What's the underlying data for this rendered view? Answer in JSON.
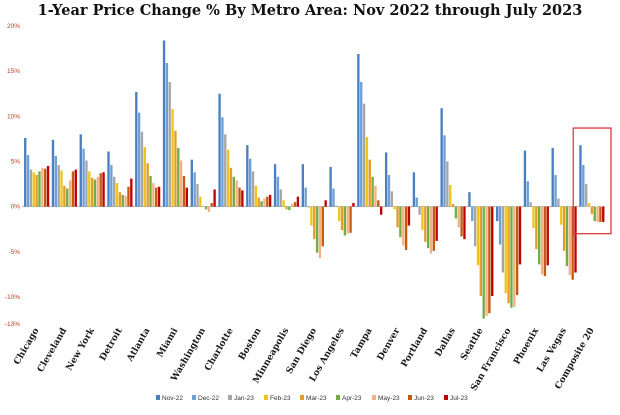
{
  "title": "1-Year Price Change % By Metro Area: Nov 2022 through July 2023",
  "chart_data": {
    "type": "bar",
    "title": "1-Year Price Change % By Metro Area: Nov 2022 through July 2023",
    "xlabel": "",
    "ylabel": "",
    "ylim": [
      -13,
      20
    ],
    "yticks": [
      20,
      15,
      10,
      5,
      0,
      -5,
      -10,
      -13
    ],
    "ytick_labels": [
      "20%",
      "15%",
      "10%",
      "5%",
      "0%",
      "-5%",
      "-10%",
      "-13%"
    ],
    "grid": false,
    "legend_position": "bottom",
    "categories": [
      "Chicago",
      "Cleveland",
      "New York",
      "Detroit",
      "Atlanta",
      "Miami",
      "Washington",
      "Charlotte",
      "Boston",
      "Minneapolis",
      "San Diego",
      "Los Angeles",
      "Tampa",
      "Denver",
      "Portland",
      "Dallas",
      "Seattle",
      "San Francisco",
      "Phoenix",
      "Las Vegas",
      "Composite 20"
    ],
    "series": [
      {
        "name": "Nov-22",
        "color": "#4a7fc1",
        "values": [
          7.6,
          7.4,
          8.0,
          6.1,
          12.7,
          18.4,
          5.2,
          12.5,
          6.8,
          4.7,
          4.7,
          4.4,
          16.9,
          6.0,
          3.8,
          10.9,
          1.6,
          -1.6,
          6.2,
          6.5,
          6.8
        ]
      },
      {
        "name": "Dec-22",
        "color": "#6e9fd6",
        "values": [
          5.7,
          5.6,
          6.4,
          4.6,
          10.4,
          15.9,
          3.8,
          9.9,
          5.3,
          3.3,
          2.1,
          2.0,
          13.8,
          3.5,
          1.0,
          7.9,
          -1.6,
          -4.2,
          2.8,
          3.5,
          4.6
        ]
      },
      {
        "name": "Jan-23",
        "color": "#a6a6a6",
        "values": [
          4.1,
          4.6,
          5.1,
          3.3,
          8.3,
          13.8,
          2.5,
          8.0,
          3.9,
          1.9,
          -0.1,
          0.1,
          11.4,
          1.7,
          -0.9,
          5.0,
          -4.4,
          -7.3,
          0.5,
          0.9,
          2.5
        ]
      },
      {
        "name": "Feb-23",
        "color": "#f0c419",
        "values": [
          3.8,
          4.0,
          3.9,
          2.6,
          6.6,
          10.8,
          1.1,
          6.3,
          2.3,
          0.7,
          -2.1,
          -1.6,
          7.7,
          -0.3,
          -2.6,
          2.4,
          -6.5,
          -9.6,
          -2.4,
          -2.0,
          0.4
        ]
      },
      {
        "name": "Mar-23",
        "color": "#e49b2c",
        "values": [
          3.5,
          2.3,
          3.2,
          1.6,
          4.8,
          8.4,
          0.0,
          4.3,
          1.0,
          -0.3,
          -3.6,
          -2.6,
          5.2,
          -2.3,
          -3.9,
          0.3,
          -9.9,
          -10.7,
          -4.7,
          -4.9,
          -0.8
        ]
      },
      {
        "name": "Apr-23",
        "color": "#70ad47",
        "values": [
          3.9,
          2.0,
          3.0,
          1.3,
          3.4,
          6.5,
          -0.3,
          3.3,
          0.6,
          -0.4,
          -5.1,
          -3.2,
          3.3,
          -3.4,
          -4.6,
          -1.3,
          -12.4,
          -11.2,
          -6.4,
          -6.6,
          -1.6
        ]
      },
      {
        "name": "May-23",
        "color": "#f4b183",
        "values": [
          4.3,
          2.9,
          3.3,
          1.2,
          2.6,
          5.1,
          -0.6,
          2.9,
          0.9,
          0.3,
          -5.7,
          -3.0,
          2.3,
          -4.3,
          -5.2,
          -2.3,
          -12.1,
          -11.1,
          -7.5,
          -7.6,
          -1.7
        ]
      },
      {
        "name": "Jun-23",
        "color": "#c55a11",
        "values": [
          4.2,
          3.9,
          3.7,
          2.2,
          2.1,
          3.4,
          0.4,
          2.1,
          1.1,
          0.5,
          -4.4,
          -2.9,
          0.7,
          -4.8,
          -4.9,
          -3.3,
          -11.8,
          -9.8,
          -7.7,
          -8.1,
          -1.7
        ]
      },
      {
        "name": "Jul-23",
        "color": "#c00000",
        "values": [
          4.5,
          4.1,
          3.8,
          3.1,
          2.2,
          2.1,
          1.9,
          1.8,
          1.3,
          1.1,
          0.7,
          0.4,
          -0.9,
          -2.1,
          -3.8,
          -3.6,
          -9.9,
          -6.4,
          -6.5,
          -7.3,
          -1.7
        ]
      }
    ]
  }
}
